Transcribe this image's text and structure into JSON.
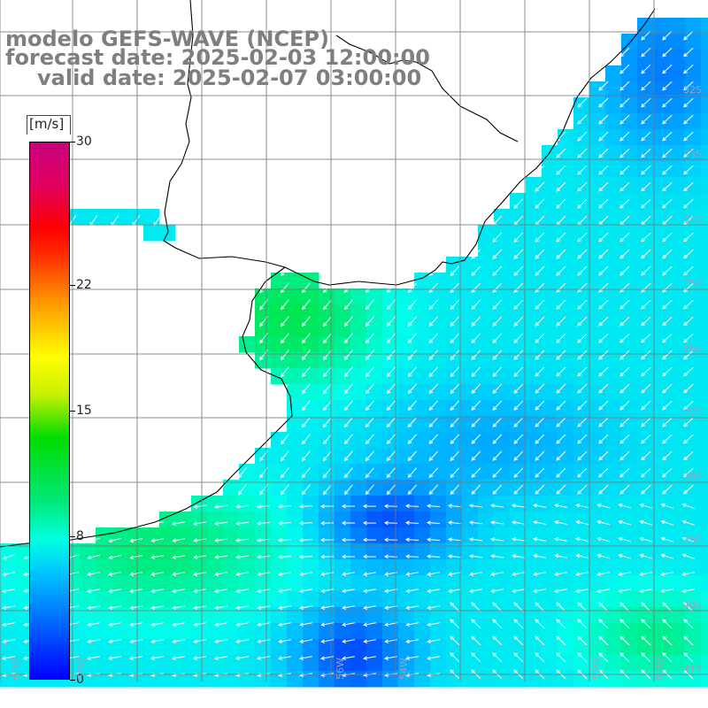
{
  "header": {
    "line1": "modelo GEFS-WAVE (NCEP)",
    "line2": "forecast date: 2025-02-03 12:00:00",
    "line3": "valid date: 2025-02-07 03:00:00"
  },
  "colorbar": {
    "unit": "[m/s]",
    "ticks": [
      {
        "label": "30",
        "value": 30
      },
      {
        "label": "22",
        "value": 22
      },
      {
        "label": "15",
        "value": 15
      },
      {
        "label": "8",
        "value": 8
      },
      {
        "label": "0",
        "value": 0
      }
    ]
  },
  "grid_labels": {
    "lat": [
      "32S",
      "33S",
      "34S",
      "35S",
      "36S",
      "37S",
      "38S",
      "39S",
      "40S",
      "41S"
    ],
    "lon": [
      "60W",
      "58W",
      "56W",
      "54W",
      "52W",
      "50W"
    ]
  },
  "colors": {
    "land": "#ffffff",
    "coast": "#000000",
    "grid": "#7a7a7a",
    "arrow": "#ffffff",
    "speed_low": "#0000ff",
    "speed_mid": "#00ccff",
    "speed_high": "#00dd22"
  }
}
